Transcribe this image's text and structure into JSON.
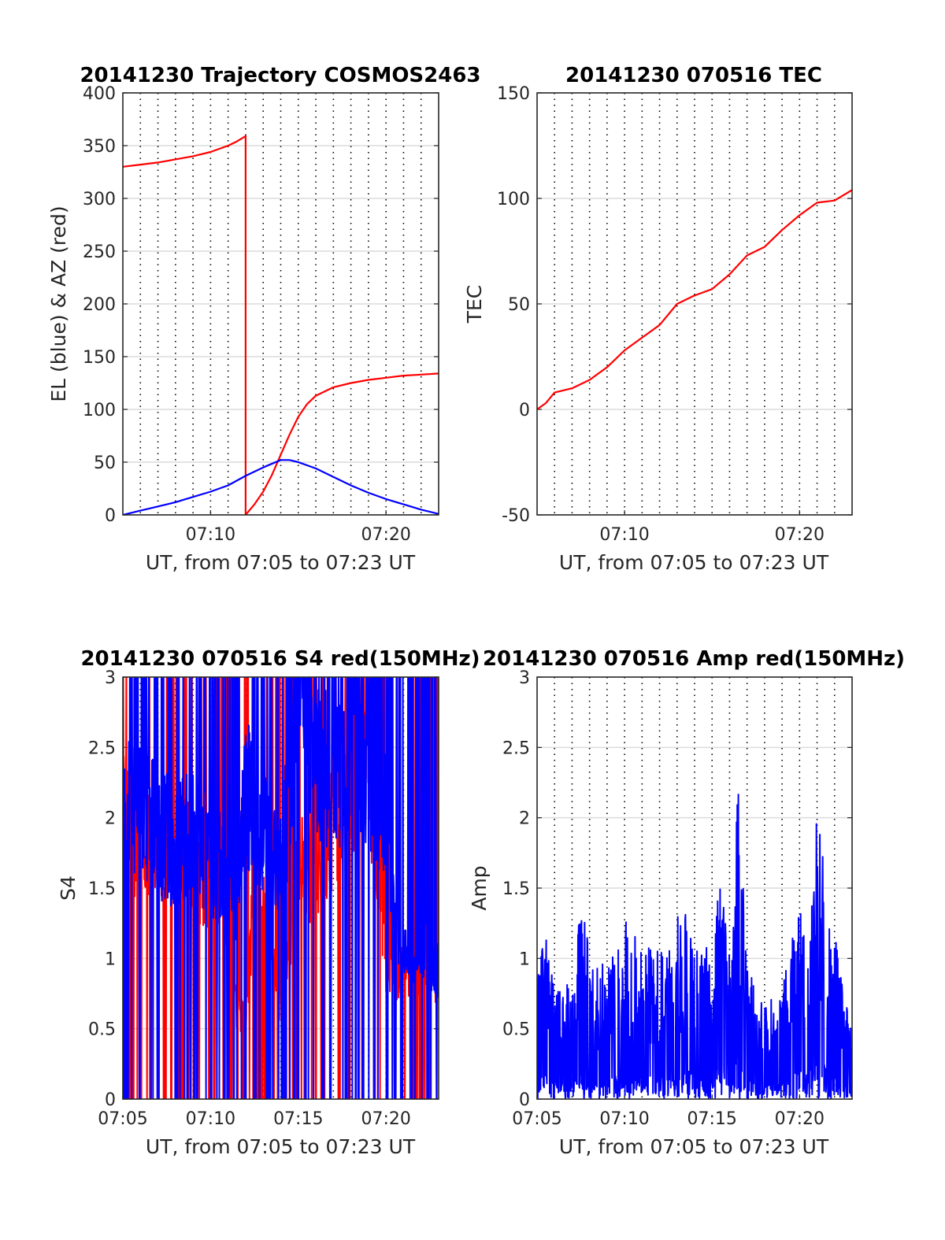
{
  "chart_data": [
    {
      "type": "line",
      "title": "20141230 Trajectory COSMOS2463",
      "xlabel": "UT, from 07:05 to 07:23 UT",
      "ylabel": "EL (blue) & AZ (red)",
      "xlim": [
        "07:05",
        "07:23"
      ],
      "ylim": [
        0,
        400
      ],
      "yticks": [
        "0",
        "50",
        "100",
        "150",
        "200",
        "250",
        "300",
        "350",
        "400"
      ],
      "xticks": [
        "07:10",
        "07:20"
      ],
      "grid": "on",
      "series": [
        {
          "color": "#ff0000",
          "x": [
            "07:05",
            "07:06",
            "07:07",
            "07:08",
            "07:09",
            "07:10",
            "07:11",
            "07:11:30",
            "07:12",
            "07:12",
            "07:12:30",
            "07:13",
            "07:13:30",
            "07:14",
            "07:14:30",
            "07:15",
            "07:15:30",
            "07:16",
            "07:17",
            "07:18",
            "07:19",
            "07:20",
            "07:21",
            "07:22",
            "07:23"
          ],
          "values": [
            330,
            332,
            334,
            337,
            340,
            344,
            350,
            354,
            359,
            0,
            10,
            22,
            38,
            57,
            76,
            93,
            105,
            113,
            121,
            125,
            128,
            130,
            132,
            133,
            134
          ]
        },
        {
          "color": "#0000ff",
          "x": [
            "07:05",
            "07:06",
            "07:07",
            "07:08",
            "07:09",
            "07:10",
            "07:11",
            "07:12",
            "07:13",
            "07:14",
            "07:14:30",
            "07:15",
            "07:16",
            "07:17",
            "07:18",
            "07:19",
            "07:20",
            "07:21",
            "07:22",
            "07:23"
          ],
          "values": [
            0,
            4,
            8,
            12,
            17,
            22,
            28,
            37,
            45,
            52,
            52,
            50,
            44,
            36,
            28,
            21,
            15,
            10,
            5,
            1
          ]
        }
      ]
    },
    {
      "type": "line",
      "title": "20141230 070516 TEC",
      "xlabel": "UT, from 07:05 to 07:23 UT",
      "ylabel": "TEC",
      "xlim": [
        "07:05",
        "07:23"
      ],
      "ylim": [
        -50,
        150
      ],
      "yticks": [
        "-50",
        "0",
        "50",
        "100",
        "150"
      ],
      "xticks": [
        "07:10",
        "07:20"
      ],
      "grid": "on",
      "series": [
        {
          "color": "#ff0000",
          "x": [
            "07:05",
            "07:05:30",
            "07:06",
            "07:07",
            "07:08",
            "07:09",
            "07:10",
            "07:11",
            "07:12",
            "07:13",
            "07:14",
            "07:15",
            "07:16",
            "07:17",
            "07:18",
            "07:19",
            "07:20",
            "07:21",
            "07:22",
            "07:23"
          ],
          "values": [
            0,
            3,
            8,
            10,
            14,
            20,
            28,
            34,
            40,
            50,
            54,
            57,
            64,
            73,
            77,
            85,
            92,
            98,
            99,
            104
          ]
        }
      ]
    },
    {
      "type": "line",
      "title": "20141230 070516 S4 red(150MHz)",
      "xlabel": "UT, from 07:05 to 07:23 UT",
      "ylabel": "S4",
      "xlim": [
        "07:05",
        "07:23"
      ],
      "ylim": [
        0,
        3
      ],
      "yticks": [
        "0",
        "0.5",
        "1",
        "1.5",
        "2",
        "2.5",
        "3"
      ],
      "xticks": [
        "07:05",
        "07:10",
        "07:15",
        "07:20"
      ],
      "grid": "on",
      "series": [
        {
          "color": "#ff0000",
          "x": [
            "07:05",
            "07:06",
            "07:07",
            "07:08",
            "07:09",
            "07:10",
            "07:11",
            "07:11:30",
            "07:12",
            "07:12:30",
            "07:13",
            "07:14",
            "07:15",
            "07:16",
            "07:17",
            "07:18",
            "07:19",
            "07:20",
            "07:21",
            "07:22",
            "07:23"
          ],
          "values": [
            2.0,
            1.7,
            1.8,
            1.7,
            1.7,
            1.6,
            1.4,
            0.6,
            0.55,
            1.5,
            1.3,
            0.7,
            1.6,
            1.7,
            2.0,
            2.2,
            2.5,
            1.0,
            0.9,
            0.9,
            0.9
          ]
        },
        {
          "color": "#0000ff",
          "x": [
            "07:05",
            "07:06",
            "07:07",
            "07:08",
            "07:09",
            "07:10",
            "07:11",
            "07:11:30",
            "07:12",
            "07:13",
            "07:14",
            "07:15",
            "07:16",
            "07:17",
            "07:18",
            "07:19",
            "07:20",
            "07:21",
            "07:22",
            "07:23"
          ],
          "values": [
            2.0,
            2.1,
            1.9,
            1.8,
            1.9,
            1.7,
            1.6,
            1.4,
            2.2,
            1.9,
            1.6,
            2.8,
            2.5,
            2.2,
            2.6,
            2.4,
            2.0,
            1.0,
            1.1,
            0.9
          ]
        }
      ]
    },
    {
      "type": "line",
      "title": "20141230 070516 Amp red(150MHz)",
      "xlabel": "UT, from 07:05 to 07:23 UT",
      "ylabel": "Amp",
      "xlim": [
        "07:05",
        "07:23"
      ],
      "ylim": [
        0,
        3
      ],
      "yticks": [
        "0",
        "0.5",
        "1",
        "1.5",
        "2",
        "2.5",
        "3"
      ],
      "xticks": [
        "07:05",
        "07:10",
        "07:15",
        "07:20"
      ],
      "grid": "on",
      "series": [
        {
          "color": "#0000ff",
          "x": [
            "07:05",
            "07:05:30",
            "07:06",
            "07:07",
            "07:07:30",
            "07:08",
            "07:09",
            "07:10",
            "07:11",
            "07:12",
            "07:13",
            "07:14",
            "07:15",
            "07:15:30",
            "07:16",
            "07:16:30",
            "07:17",
            "07:18",
            "07:19",
            "07:20",
            "07:20:30",
            "07:21",
            "07:21:30",
            "07:22",
            "07:23"
          ],
          "values": [
            0.95,
            1.15,
            0.9,
            0.9,
            1.42,
            1.05,
            0.95,
            1.3,
            1.15,
            1.05,
            1.35,
            1.3,
            1.05,
            1.9,
            1.0,
            2.28,
            1.0,
            0.65,
            0.8,
            1.42,
            1.2,
            2.1,
            1.55,
            1.2,
            0.45
          ]
        }
      ]
    }
  ]
}
